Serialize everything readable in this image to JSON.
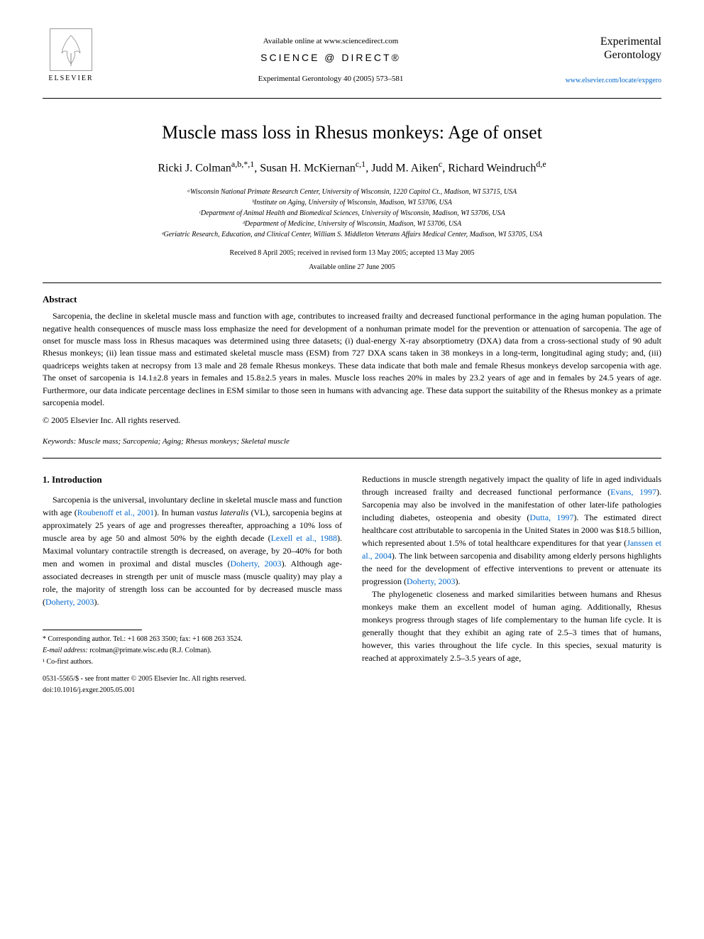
{
  "header": {
    "available_text": "Available online at www.sciencedirect.com",
    "sciencedirect": "SCIENCE @ DIRECT®",
    "journal_ref": "Experimental Gerontology 40 (2005) 573–581",
    "elsevier": "ELSEVIER",
    "journal_name_line1": "Experimental",
    "journal_name_line2": "Gerontology",
    "journal_url": "www.elsevier.com/locate/expgero"
  },
  "title": "Muscle mass loss in Rhesus monkeys: Age of onset",
  "authors_html": "Ricki J. Colman<sup>a,b,*,1</sup>, Susan H. McKiernan<sup>c,1</sup>, Judd M. Aiken<sup>c</sup>, Richard Weindruch<sup>d,e</sup>",
  "affiliations": [
    "ᵃWisconsin National Primate Research Center, University of Wisconsin, 1220 Capitol Ct., Madison, WI 53715, USA",
    "ᵇInstitute on Aging, University of Wisconsin, Madison, WI 53706, USA",
    "ᶜDepartment of Animal Health and Biomedical Sciences, University of Wisconsin, Madison, WI 53706, USA",
    "ᵈDepartment of Medicine, University of Wisconsin, Madison, WI 53706, USA",
    "ᵉGeriatric Research, Education, and Clinical Center, William S. Middleton Veterans Affairs Medical Center, Madison, WI 53705, USA"
  ],
  "dates": {
    "received": "Received 8 April 2005; received in revised form 13 May 2005; accepted 13 May 2005",
    "online": "Available online 27 June 2005"
  },
  "abstract": {
    "heading": "Abstract",
    "text": "Sarcopenia, the decline in skeletal muscle mass and function with age, contributes to increased frailty and decreased functional performance in the aging human population. The negative health consequences of muscle mass loss emphasize the need for development of a nonhuman primate model for the prevention or attenuation of sarcopenia. The age of onset for muscle mass loss in Rhesus macaques was determined using three datasets; (i) dual-energy X-ray absorptiometry (DXA) data from a cross-sectional study of 90 adult Rhesus monkeys; (ii) lean tissue mass and estimated skeletal muscle mass (ESM) from 727 DXA scans taken in 38 monkeys in a long-term, longitudinal aging study; and, (iii) quadriceps weights taken at necropsy from 13 male and 28 female Rhesus monkeys. These data indicate that both male and female Rhesus monkeys develop sarcopenia with age. The onset of sarcopenia is 14.1±2.8 years in females and 15.8±2.5 years in males. Muscle loss reaches 20% in males by 23.2 years of age and in females by 24.5 years of age. Furthermore, our data indicate percentage declines in ESM similar to those seen in humans with advancing age. These data support the suitability of the Rhesus monkey as a primate sarcopenia model.",
    "copyright": "© 2005 Elsevier Inc. All rights reserved."
  },
  "keywords": {
    "label": "Keywords:",
    "list": "Muscle mass; Sarcopenia; Aging; Rhesus monkeys; Skeletal muscle"
  },
  "intro": {
    "heading": "1. Introduction",
    "col1_p1_pre": "Sarcopenia is the universal, involuntary decline in skeletal muscle mass and function with age (",
    "col1_p1_cite1": "Roubenoff et al., 2001",
    "col1_p1_mid1": "). In human ",
    "col1_p1_ital": "vastus lateralis",
    "col1_p1_mid2": " (VL), sarcopenia begins at approximately 25 years of age and progresses thereafter, approaching a 10% loss of muscle area by age 50 and almost 50% by the eighth decade (",
    "col1_p1_cite2": "Lexell et al., 1988",
    "col1_p1_mid3": "). Maximal voluntary contractile strength is decreased, on average, by 20–40% for both men and women in proximal and distal muscles (",
    "col1_p1_cite3": "Doherty, 2003",
    "col1_p1_mid4": "). Although age-associated decreases in strength per unit of muscle mass (muscle quality) may play a role, the majority of strength loss can be accounted for by decreased muscle mass (",
    "col1_p1_cite4": "Doherty, 2003",
    "col1_p1_end": ").",
    "col2_p1_pre": "Reductions in muscle strength negatively impact the quality of life in aged individuals through increased frailty and decreased functional performance (",
    "col2_p1_cite1": "Evans, 1997",
    "col2_p1_mid1": "). Sarcopenia may also be involved in the manifestation of other later-life pathologies including diabetes, osteopenia and obesity (",
    "col2_p1_cite2": "Dutta, 1997",
    "col2_p1_mid2": "). The estimated direct healthcare cost attributable to sarcopenia in the United States in 2000 was $18.5 billion, which represented about 1.5% of total healthcare expenditures for that year (",
    "col2_p1_cite3": "Janssen et al., 2004",
    "col2_p1_mid3": "). The link between sarcopenia and disability among elderly persons highlights the need for the development of effective interventions to prevent or attenuate its progression (",
    "col2_p1_cite4": "Doherty, 2003",
    "col2_p1_end": ").",
    "col2_p2": "The phylogenetic closeness and marked similarities between humans and Rhesus monkeys make them an excellent model of human aging. Additionally, Rhesus monkeys progress through stages of life complementary to the human life cycle. It is generally thought that they exhibit an aging rate of 2.5–3 times that of humans, however, this varies throughout the life cycle. In this species, sexual maturity is reached at approximately 2.5–3.5 years of age,"
  },
  "footnotes": {
    "corr": "* Corresponding author. Tel.: +1 608 263 3500; fax: +1 608 263 3524.",
    "email_label": "E-mail address:",
    "email": "rcolman@primate.wisc.edu (R.J. Colman).",
    "cofirst": "¹ Co-first authors.",
    "issn": "0531-5565/$ - see front matter © 2005 Elsevier Inc. All rights reserved.",
    "doi": "doi:10.1016/j.exger.2005.05.001"
  },
  "colors": {
    "text": "#000000",
    "link": "#0066cc",
    "background": "#ffffff"
  }
}
